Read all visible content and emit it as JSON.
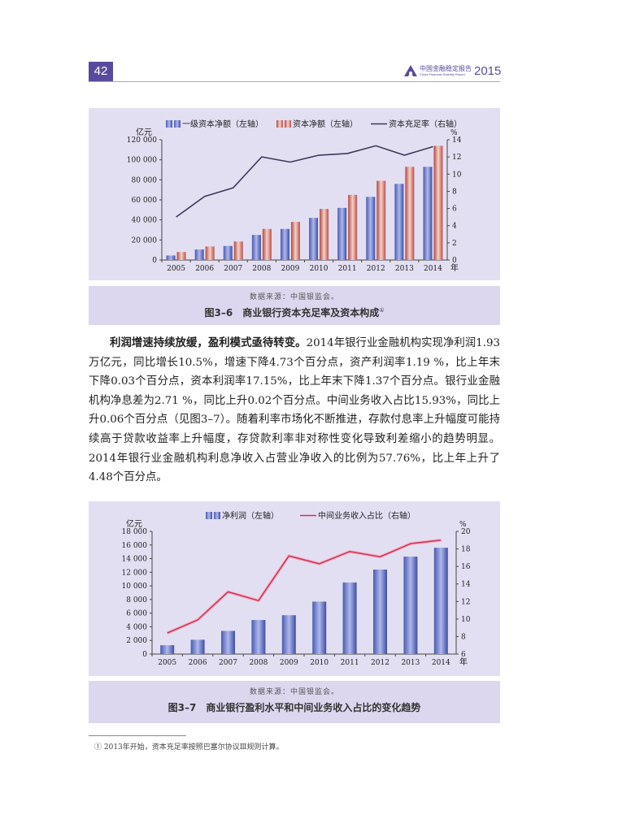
{
  "header": {
    "page_number": "42",
    "brand_cn": "中国金融稳定报告",
    "brand_en": "China Financial Stability Report",
    "brand_year": "2015"
  },
  "figure1": {
    "source": "数据来源：中国银监会。",
    "title": "图3–6　商业银行资本充足率及资本构成",
    "title_sup": "①"
  },
  "figure2": {
    "source": "数据来源：中国银监会。",
    "title": "图3–7　商业银行盈利水平和中间业务收入占比的变化趋势"
  },
  "body": {
    "bold_lead": "利润增速持续放缓，盈利模式亟待转变。",
    "text": "2014年银行业金融机构实现净利润1.93万亿元，同比增长10.5%，增速下降4.73个百分点，资产利润率1.19 %，比上年末下降0.03个百分点，资本利润率17.15%，比上年末下降1.37个百分点。银行业金融机构净息差为2.71 %，同比上升0.02个百分点。中间业务收入占比15.93%，同比上升0.06个百分点（见图3–7）。随着利率市场化不断推进，存款付息率上升幅度可能持续高于贷款收益率上升幅度，存贷款利率非对称性变化导致利差缩小的趋势明显。2014年银行业金融机构利息净收入占营业净收入的比例为57.76%，比上年上升了4.48个百分点。"
  },
  "footnote": "① 2013年开始，资本充足率按照巴塞尔协议Ⅲ规则计算。",
  "colors": {
    "accent": "#5a4a9e",
    "panel_bg": "#e3dff2",
    "caption_bg": "#dcd7ee",
    "tier1_bar": "#5b6fc4",
    "total_bar": "#c8605a",
    "car_line": "#3a3a5a",
    "ratio_line": "#d0325a"
  },
  "chart_data": [
    {
      "type": "bar",
      "title": "商业银行资本充足率及资本构成",
      "categories": [
        "2005",
        "2006",
        "2007",
        "2008",
        "2009",
        "2010",
        "2011",
        "2012",
        "2013",
        "2014"
      ],
      "xlabel": "年",
      "ylabel": "亿元",
      "ylabel_right": "%",
      "ylim": [
        0,
        120000
      ],
      "ylim_right": [
        0,
        14
      ],
      "yticks": [
        "0",
        "20 000",
        "40 000",
        "60 000",
        "80 000",
        "100 000",
        "120 000"
      ],
      "yticks_right": [
        "0",
        "2",
        "4",
        "6",
        "8",
        "10",
        "12",
        "14"
      ],
      "legend_position": "top",
      "grid": false,
      "series": [
        {
          "name": "一级资本净额（左轴）",
          "type": "bar",
          "axis": "left",
          "values": [
            4500,
            10500,
            14000,
            25000,
            31000,
            42000,
            52000,
            63000,
            76000,
            93000
          ]
        },
        {
          "name": "资本净额（左轴）",
          "type": "bar",
          "axis": "left",
          "values": [
            8000,
            13500,
            18500,
            31000,
            38000,
            51000,
            65000,
            79000,
            93000,
            114000
          ]
        },
        {
          "name": "资本充足率（右轴）",
          "type": "line",
          "axis": "right",
          "values": [
            5.0,
            7.4,
            8.4,
            12.0,
            11.4,
            12.2,
            12.4,
            13.3,
            12.2,
            13.2
          ]
        }
      ]
    },
    {
      "type": "bar",
      "title": "商业银行盈利水平和中间业务收入占比的变化趋势",
      "categories": [
        "2005",
        "2006",
        "2007",
        "2008",
        "2009",
        "2010",
        "2011",
        "2012",
        "2013",
        "2014"
      ],
      "xlabel": "年",
      "ylabel": "亿元",
      "ylabel_right": "%",
      "ylim": [
        0,
        18000
      ],
      "ylim_right": [
        6,
        20
      ],
      "yticks": [
        "0",
        "2 000",
        "4 000",
        "6 000",
        "8 000",
        "10 000",
        "12 000",
        "14 000",
        "16 000",
        "18 000"
      ],
      "yticks_right": [
        "6",
        "8",
        "10",
        "12",
        "14",
        "16",
        "18",
        "20"
      ],
      "legend_position": "top",
      "grid": false,
      "series": [
        {
          "name": "净利润（左轴）",
          "type": "bar",
          "axis": "left",
          "values": [
            1300,
            2100,
            3400,
            5000,
            5700,
            7700,
            10500,
            12400,
            14300,
            15600
          ]
        },
        {
          "name": "中间业务收入占比（右轴）",
          "type": "line",
          "axis": "right",
          "values": [
            8.4,
            9.9,
            13.1,
            12.1,
            17.2,
            16.3,
            17.7,
            17.1,
            18.6,
            19.0
          ]
        }
      ]
    }
  ]
}
